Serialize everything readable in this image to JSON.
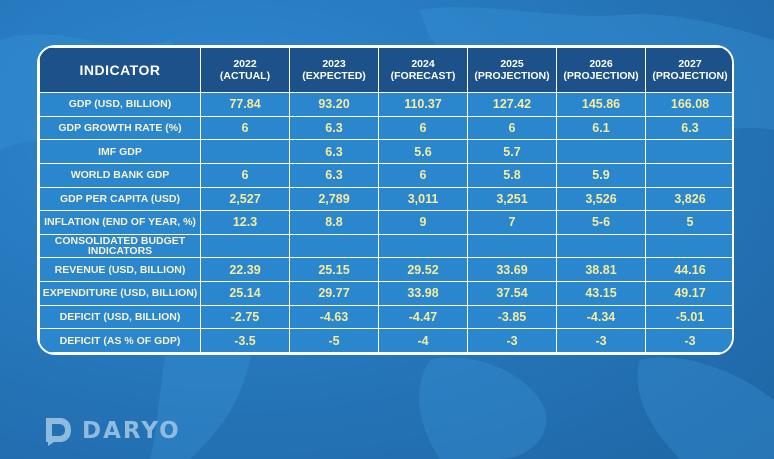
{
  "table": {
    "header": {
      "indicator": "INDICATOR",
      "years": [
        {
          "year": "2022",
          "type": "(ACTUAL)"
        },
        {
          "year": "2023",
          "type": "(EXPECTED)"
        },
        {
          "year": "2024",
          "type": "(FORECAST)"
        },
        {
          "year": "2025",
          "type": "(PROJECTION)"
        },
        {
          "year": "2026",
          "type": "(PROJECTION)"
        },
        {
          "year": "2027",
          "type": "(PROJECTION)"
        }
      ]
    },
    "rows": [
      {
        "label": "GDP (USD, BILLION)",
        "values": [
          "77.84",
          "93.20",
          "110.37",
          "127.42",
          "145.86",
          "166.08"
        ]
      },
      {
        "label": "GDP GROWTH RATE (%)",
        "values": [
          "6",
          "6.3",
          "6",
          "6",
          "6.1",
          "6.3"
        ]
      },
      {
        "label": "IMF GDP",
        "values": [
          "",
          "6.3",
          "5.6",
          "5.7",
          "",
          ""
        ]
      },
      {
        "label": "WORLD BANK GDP",
        "values": [
          "6",
          "6.3",
          "6",
          "5.8",
          "5.9",
          ""
        ]
      },
      {
        "label": "GDP PER CAPITA (USD)",
        "values": [
          "2,527",
          "2,789",
          "3,011",
          "3,251",
          "3,526",
          "3,826"
        ]
      },
      {
        "label": "INFLATION (END OF YEAR, %)",
        "values": [
          "12.3",
          "8.8",
          "9",
          "7",
          "5-6",
          "5"
        ]
      },
      {
        "label": "CONSOLIDATED BUDGET INDICATORS",
        "values": [
          "",
          "",
          "",
          "",
          "",
          ""
        ]
      },
      {
        "label": "REVENUE (USD, BILLION)",
        "values": [
          "22.39",
          "25.15",
          "29.52",
          "33.69",
          "38.81",
          "44.16"
        ]
      },
      {
        "label": "EXPENDITURE (USD, BILLION)",
        "values": [
          "25.14",
          "29.77",
          "33.98",
          "37.54",
          "43.15",
          "49.17"
        ]
      },
      {
        "label": "DEFICIT (USD, BILLION)",
        "values": [
          "-2.75",
          "-4.63",
          "-4.47",
          "-3.85",
          "-4.34",
          "-5.01"
        ]
      },
      {
        "label": "DEFICIT (AS % OF GDP)",
        "values": [
          "-3.5",
          "-5",
          "-4",
          "-3",
          "-3",
          "-3"
        ]
      }
    ]
  },
  "logo": {
    "text": "DARYO",
    "icon": "daryo-logo-icon"
  },
  "colors": {
    "background": "#2678bd",
    "header": "#1c5189",
    "cell": "#2a86cd",
    "value_text": "#f5ec9e",
    "border": "#ffffff"
  }
}
